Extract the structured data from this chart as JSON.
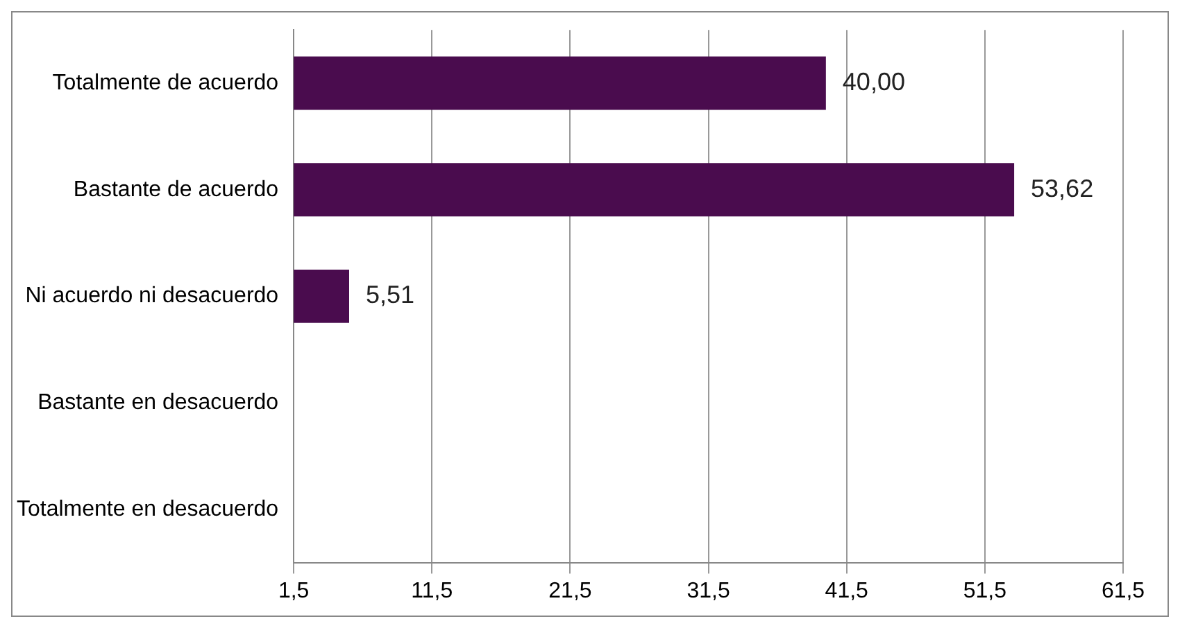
{
  "chart_data": {
    "type": "bar",
    "orientation": "horizontal",
    "categories": [
      "Totalmente de acuerdo",
      "Bastante de acuerdo",
      "Ni acuerdo ni desacuerdo",
      "Bastante en desacuerdo",
      "Totalmente en desacuerdo"
    ],
    "values": [
      40.0,
      53.62,
      5.51,
      null,
      null
    ],
    "value_labels": [
      "40,00",
      "53,62",
      "5,51",
      null,
      null
    ],
    "color": "#4a0c4e",
    "xlim": [
      1.5,
      61.5
    ],
    "xticks": [
      {
        "value": 1.5,
        "label": "1,5"
      },
      {
        "value": 11.5,
        "label": "11,5"
      },
      {
        "value": 21.5,
        "label": "21,5"
      },
      {
        "value": 31.5,
        "label": "31,5"
      },
      {
        "value": 41.5,
        "label": "41,5"
      },
      {
        "value": 51.5,
        "label": "51,5"
      },
      {
        "value": 61.5,
        "label": "61,5"
      }
    ],
    "grid": "x",
    "legend": false
  }
}
